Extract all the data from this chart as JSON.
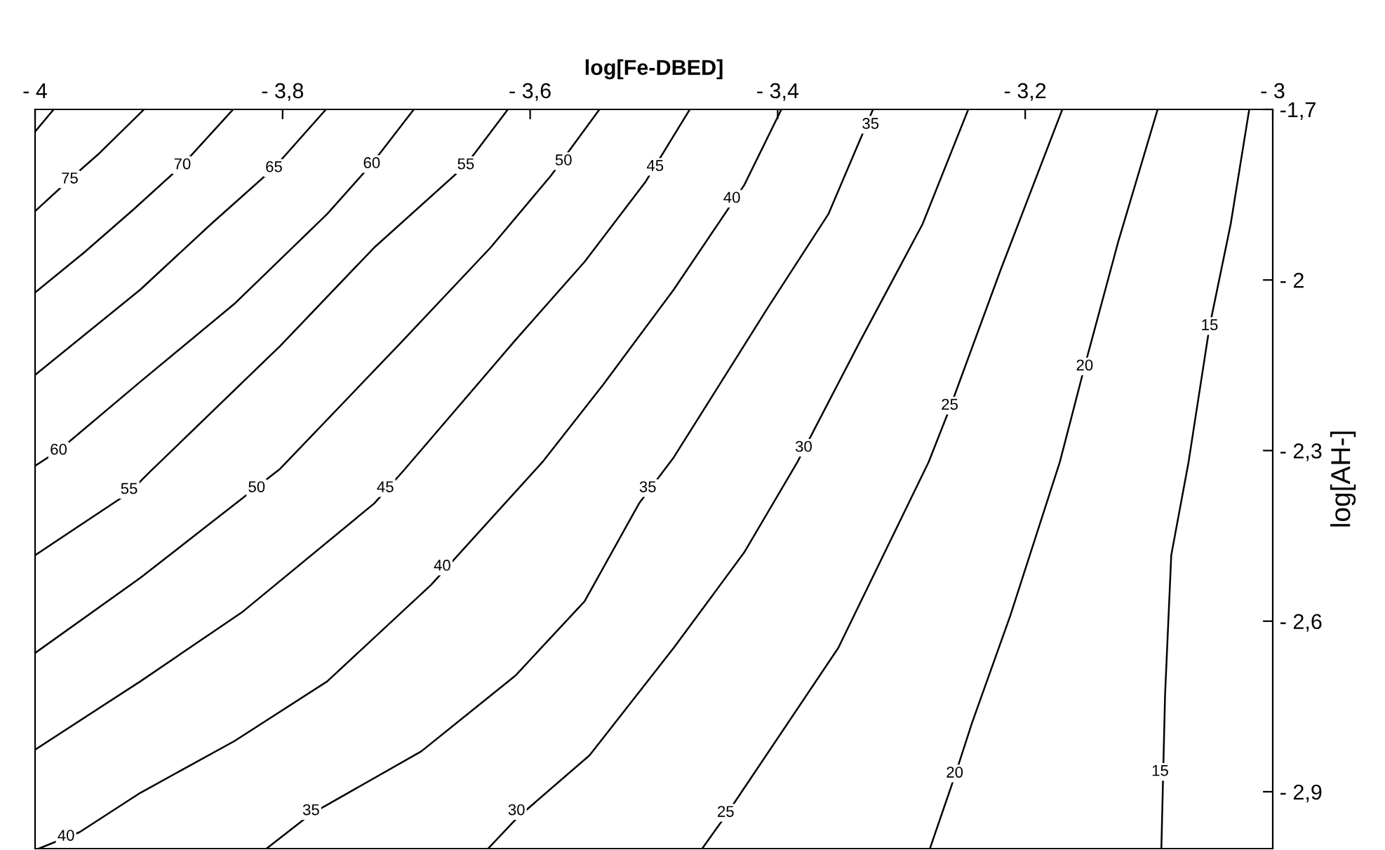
{
  "chart_data": {
    "type": "line",
    "xlabel": "log[Fe-DBED]",
    "ylabel": "log[AH-]",
    "xlim": [
      -4,
      -3
    ],
    "ylim": [
      -3,
      -1.7
    ],
    "xticks": [
      {
        "value": -4,
        "label": "- 4"
      },
      {
        "value": -3.8,
        "label": "- 3,8"
      },
      {
        "value": -3.6,
        "label": "- 3,6"
      },
      {
        "value": -3.4,
        "label": "- 3,4"
      },
      {
        "value": -3.2,
        "label": "- 3,2"
      },
      {
        "value": -3,
        "label": "- 3"
      }
    ],
    "yticks": [
      {
        "value": -1.7,
        "label": "-1,7"
      },
      {
        "value": -2,
        "label": "- 2"
      },
      {
        "value": -2.3,
        "label": "- 2,3"
      },
      {
        "value": -2.6,
        "label": "- 2,6"
      },
      {
        "value": -2.9,
        "label": "- 2,9"
      }
    ],
    "grid": false,
    "marker": "none",
    "line_style": "solid",
    "series": [
      {
        "color": "#000000",
        "x": [
          -4.0,
          -3.985
        ],
        "values": [
          -1.739,
          -1.7
        ]
      },
      {
        "color": "#000000",
        "x": [
          -4.0,
          -3.972,
          -3.949,
          -3.912
        ],
        "values": [
          -1.879,
          -1.823,
          -1.779,
          -1.7
        ]
      },
      {
        "color": "#000000",
        "x": [
          -4.0,
          -3.96,
          -3.921,
          -3.881,
          -3.84
        ],
        "values": [
          -2.022,
          -1.951,
          -1.877,
          -1.798,
          -1.7
        ]
      },
      {
        "color": "#000000",
        "x": [
          -4.0,
          -3.915,
          -3.858,
          -3.807,
          -3.765
        ],
        "values": [
          -2.167,
          -2.017,
          -1.902,
          -1.803,
          -1.7
        ]
      },
      {
        "color": "#000000",
        "x": [
          -4.0,
          -3.981,
          -3.915,
          -3.839,
          -3.764,
          -3.728,
          -3.694
        ],
        "values": [
          -2.327,
          -2.3,
          -2.179,
          -2.042,
          -1.884,
          -1.796,
          -1.7
        ]
      },
      {
        "color": "#000000",
        "x": [
          -4.0,
          -3.924,
          -3.907,
          -3.802,
          -3.726,
          -3.652,
          -3.618
        ],
        "values": [
          -2.484,
          -2.374,
          -2.337,
          -2.116,
          -1.943,
          -1.798,
          -1.7
        ]
      },
      {
        "color": "#000000",
        "x": [
          -4.0,
          -3.915,
          -3.802,
          -3.707,
          -3.632,
          -3.583,
          -3.544
        ],
        "values": [
          -2.656,
          -2.524,
          -2.332,
          -2.116,
          -1.943,
          -1.816,
          -1.7
        ]
      },
      {
        "color": "#000000",
        "x": [
          -4.0,
          -3.915,
          -3.832,
          -3.726,
          -3.703,
          -3.612,
          -3.556,
          -3.507,
          -3.471
        ],
        "values": [
          -2.826,
          -2.706,
          -2.583,
          -2.393,
          -2.337,
          -2.106,
          -1.968,
          -1.828,
          -1.7
        ]
      },
      {
        "color": "#000000",
        "x": [
          -3.997,
          -3.964,
          -3.915,
          -3.839,
          -3.764,
          -3.68,
          -3.59,
          -3.541,
          -3.484,
          -3.427,
          -3.397
        ],
        "values": [
          -3.0,
          -2.971,
          -2.902,
          -2.811,
          -2.706,
          -2.536,
          -2.32,
          -2.184,
          -2.017,
          -1.833,
          -1.7
        ]
      },
      {
        "color": "#000000",
        "x": [
          -3.813,
          -3.777,
          -3.688,
          -3.612,
          -3.556,
          -3.512,
          -3.484,
          -3.408,
          -3.359,
          -3.323
        ],
        "values": [
          -3.0,
          -2.939,
          -2.829,
          -2.696,
          -2.565,
          -2.393,
          -2.312,
          -2.049,
          -1.884,
          -1.7
        ]
      },
      {
        "color": "#000000",
        "x": [
          -3.634,
          -3.611,
          -3.552,
          -3.484,
          -3.427,
          -3.384,
          -3.333,
          -3.283,
          -3.246
        ],
        "values": [
          -3.0,
          -2.947,
          -2.836,
          -2.647,
          -2.479,
          -2.32,
          -2.106,
          -1.902,
          -1.7
        ]
      },
      {
        "color": "#000000",
        "x": [
          -3.461,
          -3.442,
          -3.351,
          -3.278,
          -3.261,
          -3.22,
          -3.17
        ],
        "values": [
          -3.0,
          -2.942,
          -2.647,
          -2.32,
          -2.226,
          -1.983,
          -1.7
        ]
      },
      {
        "color": "#000000",
        "x": [
          -3.277,
          -3.257,
          -3.243,
          -3.212,
          -3.172,
          -3.152,
          -3.125,
          -3.093
        ],
        "values": [
          -3.0,
          -2.873,
          -2.779,
          -2.59,
          -2.32,
          -2.152,
          -1.934,
          -1.7
        ]
      },
      {
        "color": "#000000",
        "x": [
          -3.09,
          -3.087,
          -3.082,
          -3.068,
          -3.051,
          -3.034,
          -3.019
        ],
        "values": [
          -3.0,
          -2.73,
          -2.484,
          -2.32,
          -2.081,
          -1.902,
          -1.7
        ]
      }
    ],
    "annotations": [
      {
        "text": "75",
        "x": -3.972,
        "y": -1.823
      },
      {
        "text": "70",
        "x": -3.881,
        "y": -1.798
      },
      {
        "text": "65",
        "x": -3.807,
        "y": -1.803
      },
      {
        "text": "60",
        "x": -3.728,
        "y": -1.796
      },
      {
        "text": "60",
        "x": -3.981,
        "y": -2.3
      },
      {
        "text": "55",
        "x": -3.652,
        "y": -1.798
      },
      {
        "text": "55",
        "x": -3.924,
        "y": -2.369
      },
      {
        "text": "50",
        "x": -3.573,
        "y": -1.791
      },
      {
        "text": "50",
        "x": -3.821,
        "y": -2.366
      },
      {
        "text": "45",
        "x": -3.499,
        "y": -1.801
      },
      {
        "text": "45",
        "x": -3.717,
        "y": -2.366
      },
      {
        "text": "40",
        "x": -3.437,
        "y": -1.857
      },
      {
        "text": "40",
        "x": -3.671,
        "y": -2.504
      },
      {
        "text": "40",
        "x": -3.975,
        "y": -2.979
      },
      {
        "text": "35",
        "x": -3.325,
        "y": -1.727
      },
      {
        "text": "35",
        "x": -3.505,
        "y": -2.366
      },
      {
        "text": "35",
        "x": -3.777,
        "y": -2.934
      },
      {
        "text": "30",
        "x": -3.379,
        "y": -2.295
      },
      {
        "text": "30",
        "x": -3.611,
        "y": -2.934
      },
      {
        "text": "25",
        "x": -3.261,
        "y": -2.221
      },
      {
        "text": "25",
        "x": -3.442,
        "y": -2.937
      },
      {
        "text": "20",
        "x": -3.152,
        "y": -2.152
      },
      {
        "text": "20",
        "x": -3.257,
        "y": -2.868
      },
      {
        "text": "15",
        "x": -3.051,
        "y": -2.081
      },
      {
        "text": "15",
        "x": -3.091,
        "y": -2.865
      }
    ]
  }
}
